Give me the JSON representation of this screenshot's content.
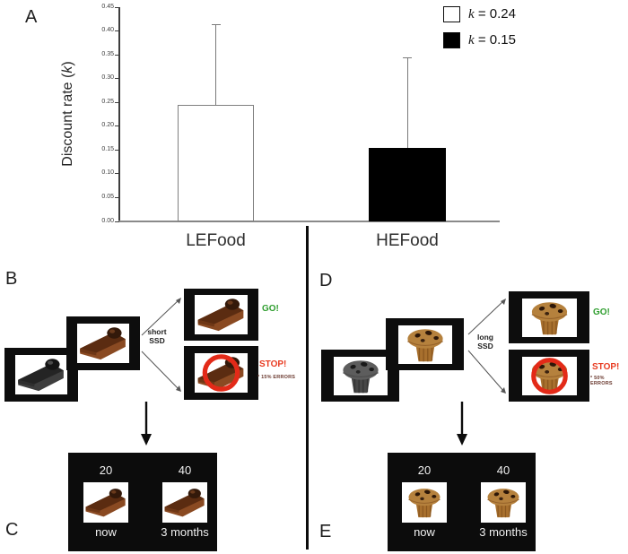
{
  "colors": {
    "go_green": "#2f9e2f",
    "stop_red": "#e83c22",
    "ring_red": "#e32a18",
    "bar_white": "#ffffff",
    "bar_black": "#000000"
  },
  "chart_data": {
    "type": "bar",
    "title": "",
    "ylabel_parts": [
      "Discount rate (",
      "k",
      ")"
    ],
    "categories": [
      "LEFood",
      "HEFood"
    ],
    "values": [
      0.245,
      0.155
    ],
    "error_tops": [
      0.415,
      0.345
    ],
    "bar_fills": [
      "#ffffff",
      "#000000"
    ],
    "ylim": [
      0,
      0.45
    ],
    "ytick_step": 0.05,
    "grid": false,
    "legend_position": "top-right",
    "legend": [
      {
        "symbol": "k",
        "text": "= 0.24",
        "fill": "#ffffff"
      },
      {
        "symbol": "k",
        "text": "= 0.15",
        "fill": "#000000"
      }
    ]
  },
  "panels": {
    "a": {
      "label": "A"
    },
    "b": {
      "label": "B",
      "ssd_line1": "short",
      "ssd_line2": "SSD",
      "go": "GO!",
      "stop": "STOP!",
      "errors_note": "* 15% ERRORS",
      "food": "chocolate cake slice"
    },
    "c": {
      "label": "C",
      "amount_now": "20",
      "amount_later": "40",
      "delay_now": "now",
      "delay_later": "3 months"
    },
    "d": {
      "label": "D",
      "ssd_line1": "long",
      "ssd_line2": "SSD",
      "go": "GO!",
      "stop": "STOP!",
      "errors_note": "* 50% ERRORS",
      "food": "chocolate chip muffin"
    },
    "e": {
      "label": "E",
      "amount_now": "20",
      "amount_later": "40",
      "delay_now": "now",
      "delay_later": "3 months"
    }
  }
}
